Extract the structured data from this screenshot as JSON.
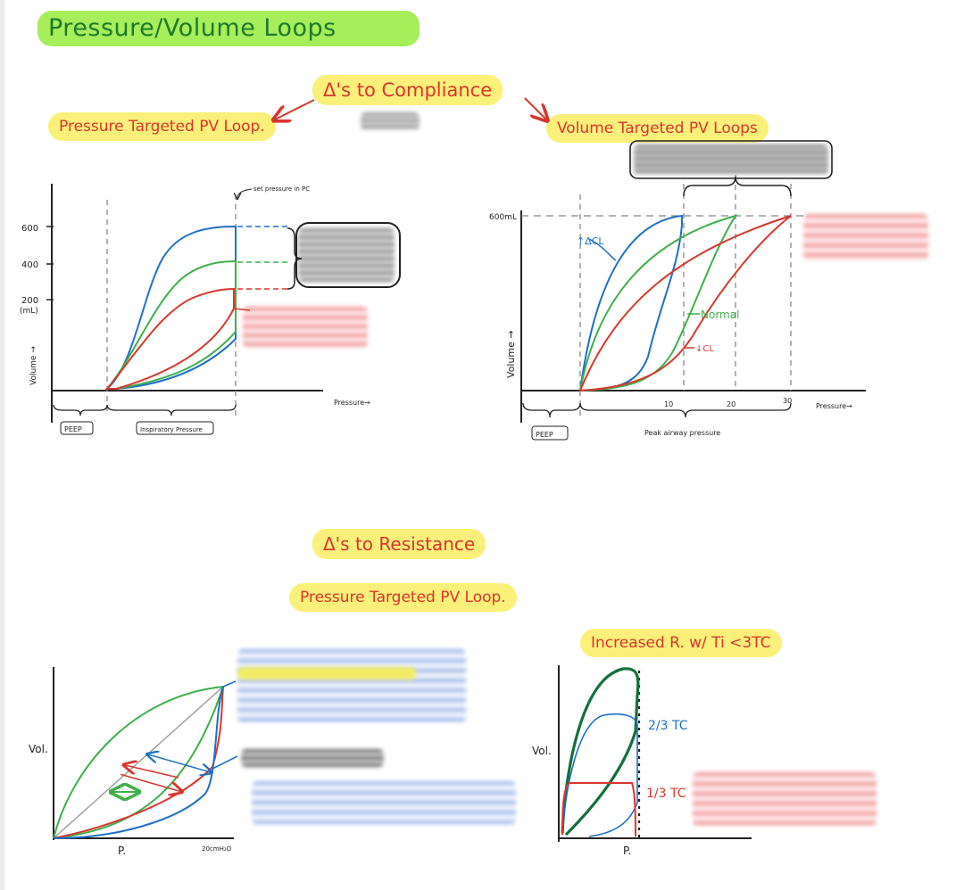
{
  "title": "Pressure/Volume Loops",
  "compliance": {
    "heading": "Δ's to Compliance",
    "pressure_targeted": {
      "heading": "Pressure Targeted PV Loop.",
      "set_pressure_label": "set pressure in PC",
      "y_ticks": [
        "600",
        "400",
        "200"
      ],
      "y_unit": "(mL)",
      "y_axis_label": "Volume →",
      "x_axis_label": "Pressure→",
      "peep_label": "PEEP",
      "insp_label": "Inspiratory Pressure"
    },
    "volume_targeted": {
      "heading": "Volume Targeted PV Loops",
      "y_tick": "600mL",
      "y_axis_label": "Volume →",
      "x_ticks": [
        "10",
        "20",
        "30"
      ],
      "x_axis_label": "Pressure→",
      "peep_label": "PEEP",
      "peak_label": "Peak airway pressure",
      "increase_label": "↑ΔCL",
      "normal_label": "Normal",
      "decrease_label": "↓CL"
    }
  },
  "resistance": {
    "heading": "Δ's to Resistance",
    "pressure_targeted": {
      "heading": "Pressure Targeted PV Loop.",
      "y_axis_label": "Vol.",
      "x_axis_label": "P.",
      "x_tick": "20cmH₂O"
    },
    "increased": {
      "heading": "Increased R. w/ Ti <3TC",
      "y_axis_label": "Vol.",
      "x_axis_label": "P.",
      "two_thirds_label": "2/3 TC",
      "one_third_label": "1/3 TC"
    }
  },
  "colors": {
    "blue": "#1f6fc8",
    "green": "#3db04a",
    "red": "#d8372e",
    "dark_green": "#14703a",
    "gray": "#888888",
    "title_highlight": "#a6ee5a",
    "yellow_highlight": "#fbf07a"
  }
}
